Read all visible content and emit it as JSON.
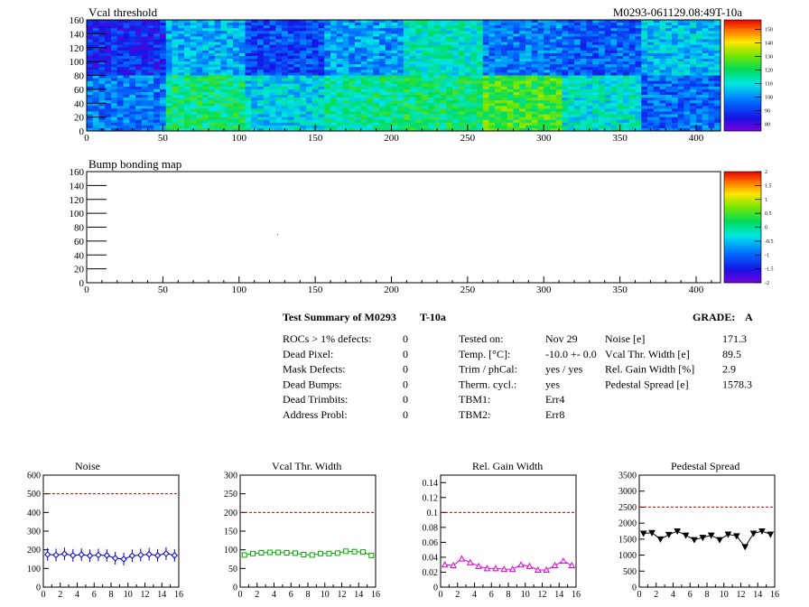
{
  "top_right_id": "M0293-061129.08:49T-10a",
  "summary": {
    "title_left": "Test Summary of M0293",
    "title_mid": "T-10a",
    "grade_label": "GRADE:",
    "grade_value": "A",
    "col1": [
      {
        "label": "ROCs > 1% defects:",
        "value": "0"
      },
      {
        "label": "Dead Pixel:",
        "value": "0"
      },
      {
        "label": "Mask Defects:",
        "value": "0"
      },
      {
        "label": "Dead Bumps:",
        "value": "0"
      },
      {
        "label": "Dead Trimbits:",
        "value": "0"
      },
      {
        "label": "Address Probl:",
        "value": "0"
      }
    ],
    "col2": [
      {
        "label": "Tested on:",
        "value": "Nov 29"
      },
      {
        "label": "Temp. [°C]:",
        "value": "-10.0 +- 0.0"
      },
      {
        "label": "Trim / phCal:",
        "value": "yes / yes"
      },
      {
        "label": "Therm. cycl.:",
        "value": "yes"
      },
      {
        "label": "TBM1:",
        "value": "Err4"
      },
      {
        "label": "TBM2:",
        "value": "Err8"
      }
    ],
    "col3": [
      {
        "label": "Noise [e]",
        "value": "171.3"
      },
      {
        "label": "Vcal Thr. Width [e]",
        "value": "89.5"
      },
      {
        "label": "Rel. Gain Width [%]",
        "value": "2.9"
      },
      {
        "label": "Pedestal Spread [e]",
        "value": "1578.3"
      }
    ]
  },
  "chart_data": [
    {
      "type": "heatmap",
      "title": "Vcal threshold",
      "xlim": [
        0,
        416
      ],
      "ylim": [
        0,
        160
      ],
      "xticks": [
        0,
        50,
        100,
        150,
        200,
        250,
        300,
        350,
        400
      ],
      "yticks": [
        0,
        20,
        40,
        60,
        80,
        100,
        120,
        140,
        160
      ],
      "zticks": [
        80,
        90,
        100,
        110,
        120,
        130,
        140,
        150
      ],
      "zlim": [
        75,
        157
      ],
      "roc_columns": 8,
      "roc_rows": 2,
      "roc_mean_top": [
        88,
        104,
        92,
        101,
        112,
        98,
        95,
        106
      ],
      "roc_mean_bottom": [
        98,
        118,
        108,
        116,
        119,
        125,
        110,
        96
      ]
    },
    {
      "type": "heatmap",
      "title": "Bump bonding map",
      "xlim": [
        0,
        416
      ],
      "ylim": [
        0,
        160
      ],
      "xticks": [
        0,
        50,
        100,
        150,
        200,
        250,
        300,
        350,
        400
      ],
      "yticks": [
        0,
        20,
        40,
        60,
        80,
        100,
        120,
        140,
        160
      ],
      "zticks": [
        -2,
        -1.5,
        -1,
        -0.5,
        0,
        0.5,
        1,
        1.5,
        2
      ],
      "zlim": [
        -2,
        2
      ],
      "points": [
        {
          "x": 125,
          "y": 70
        }
      ]
    },
    {
      "type": "line",
      "title": "Noise",
      "xlim": [
        0,
        16
      ],
      "ylim": [
        0,
        600
      ],
      "xticks": [
        0,
        2,
        4,
        6,
        8,
        10,
        12,
        14,
        16
      ],
      "yticks": [
        0,
        100,
        200,
        300,
        400,
        500,
        600
      ],
      "threshold": 500,
      "color": "#0000cc",
      "marker": "diamond",
      "x": [
        0.5,
        1.5,
        2.5,
        3.5,
        4.5,
        5.5,
        6.5,
        7.5,
        8.5,
        9.5,
        10.5,
        11.5,
        12.5,
        13.5,
        14.5,
        15.5
      ],
      "values": [
        175,
        172,
        178,
        170,
        174,
        168,
        172,
        170,
        155,
        150,
        168,
        172,
        176,
        170,
        180,
        170
      ]
    },
    {
      "type": "line",
      "title": "Vcal Thr. Width",
      "xlim": [
        0,
        16
      ],
      "ylim": [
        0,
        300
      ],
      "xticks": [
        0,
        2,
        4,
        6,
        8,
        10,
        12,
        14,
        16
      ],
      "yticks": [
        0,
        50,
        100,
        150,
        200,
        250,
        300
      ],
      "threshold": 200,
      "color": "#00aa00",
      "marker": "square",
      "x": [
        0.5,
        1.5,
        2.5,
        3.5,
        4.5,
        5.5,
        6.5,
        7.5,
        8.5,
        9.5,
        10.5,
        11.5,
        12.5,
        13.5,
        14.5,
        15.5
      ],
      "values": [
        86,
        90,
        92,
        93,
        93,
        92,
        91,
        87,
        86,
        90,
        90,
        91,
        96,
        95,
        94,
        85
      ]
    },
    {
      "type": "line",
      "title": "Rel. Gain Width",
      "xlim": [
        0,
        16
      ],
      "ylim": [
        0,
        0.15
      ],
      "xticks": [
        0,
        2,
        4,
        6,
        8,
        10,
        12,
        14,
        16
      ],
      "yticks": [
        0,
        0.02,
        0.04,
        0.06,
        0.08,
        0.1,
        0.12,
        0.14
      ],
      "threshold": 0.1,
      "color": "#dd00dd",
      "marker": "triangle",
      "x": [
        0.5,
        1.5,
        2.5,
        3.5,
        4.5,
        5.5,
        6.5,
        7.5,
        8.5,
        9.5,
        10.5,
        11.5,
        12.5,
        13.5,
        14.5,
        15.5
      ],
      "values": [
        0.03,
        0.029,
        0.038,
        0.033,
        0.028,
        0.025,
        0.025,
        0.024,
        0.024,
        0.03,
        0.028,
        0.023,
        0.023,
        0.029,
        0.035,
        0.029
      ]
    },
    {
      "type": "line",
      "title": "Pedestal Spread",
      "xlim": [
        0,
        16
      ],
      "ylim": [
        0,
        3500
      ],
      "xticks": [
        0,
        2,
        4,
        6,
        8,
        10,
        12,
        14,
        16
      ],
      "yticks": [
        0,
        500,
        1000,
        1500,
        2000,
        2500,
        3000,
        3500
      ],
      "threshold": 2500,
      "color": "#000000",
      "marker": "triangle-down",
      "x": [
        0.5,
        1.5,
        2.5,
        3.5,
        4.5,
        5.5,
        6.5,
        7.5,
        8.5,
        9.5,
        10.5,
        11.5,
        12.5,
        13.5,
        14.5,
        15.5
      ],
      "values": [
        1680,
        1700,
        1500,
        1640,
        1750,
        1620,
        1480,
        1550,
        1620,
        1480,
        1650,
        1600,
        1260,
        1680,
        1750,
        1650
      ]
    }
  ]
}
